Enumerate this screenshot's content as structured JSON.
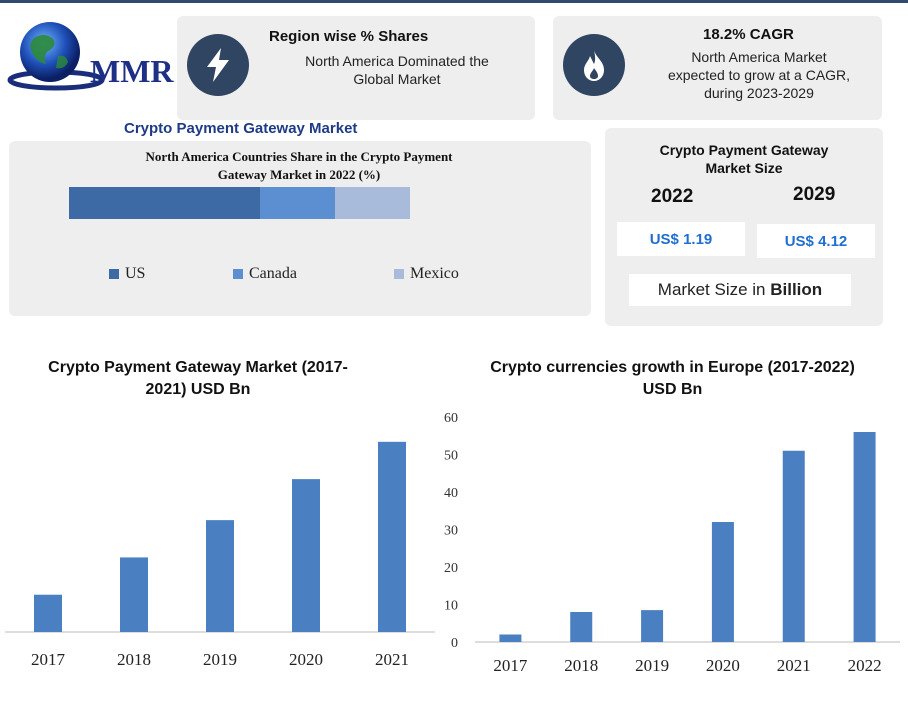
{
  "logo": {
    "text": "MMR"
  },
  "region_card": {
    "title": "Region wise % Shares",
    "line1": "North America Dominated the",
    "line2": "Global Market",
    "icon": "lightning-icon"
  },
  "cagr_card": {
    "title": "18.2% CAGR",
    "line1": "North America Market",
    "line2": "expected to grow at a CAGR,",
    "line3": "during 2023-2029",
    "icon": "flame-icon"
  },
  "market_title": "Crypto Payment Gateway Market",
  "share_chart": {
    "title_line1": "North America Countries Share in the Crypto Payment",
    "title_line2": "Gateway Market in 2022 (%)",
    "segments": [
      {
        "name": "US",
        "value": 56,
        "color": "#3d6aa5"
      },
      {
        "name": "Canada",
        "value": 22,
        "color": "#5b8fd1"
      },
      {
        "name": "Mexico",
        "value": 22,
        "color": "#a9bbdb"
      }
    ]
  },
  "size_card": {
    "title_line1": "Crypto Payment Gateway",
    "title_line2": "Market Size",
    "year1": "2022",
    "year2": "2029",
    "value1": "US$ 1.19",
    "value2": "US$ 4.12",
    "unit_label_prefix": "Market Size in ",
    "unit_label_bold": "Billion"
  },
  "chart_data": [
    {
      "type": "bar",
      "title": "Crypto Payment Gateway Market (2017-2021) USD Bn",
      "title_line1": "Crypto Payment Gateway Market (2017-",
      "title_line2": "2021) USD Bn",
      "categories": [
        "2017",
        "2018",
        "2019",
        "2020",
        "2021"
      ],
      "values": [
        1.0,
        2.0,
        3.0,
        4.1,
        5.1
      ],
      "ylim": [
        0,
        5.9
      ],
      "color": "#4a7fc1"
    },
    {
      "type": "bar",
      "title": "Crypto currencies growth in Europe (2017-2022) USD Bn",
      "title_line1": "Crypto currencies growth in Europe (2017-2022)",
      "title_line2": "USD Bn",
      "categories": [
        "2017",
        "2018",
        "2019",
        "2020",
        "2021",
        "2022"
      ],
      "values": [
        2,
        8,
        8.5,
        32,
        51,
        56
      ],
      "ylim": [
        0,
        60
      ],
      "yticks": [
        0,
        10,
        20,
        30,
        40,
        50,
        60
      ],
      "color": "#4a7fc1"
    }
  ]
}
